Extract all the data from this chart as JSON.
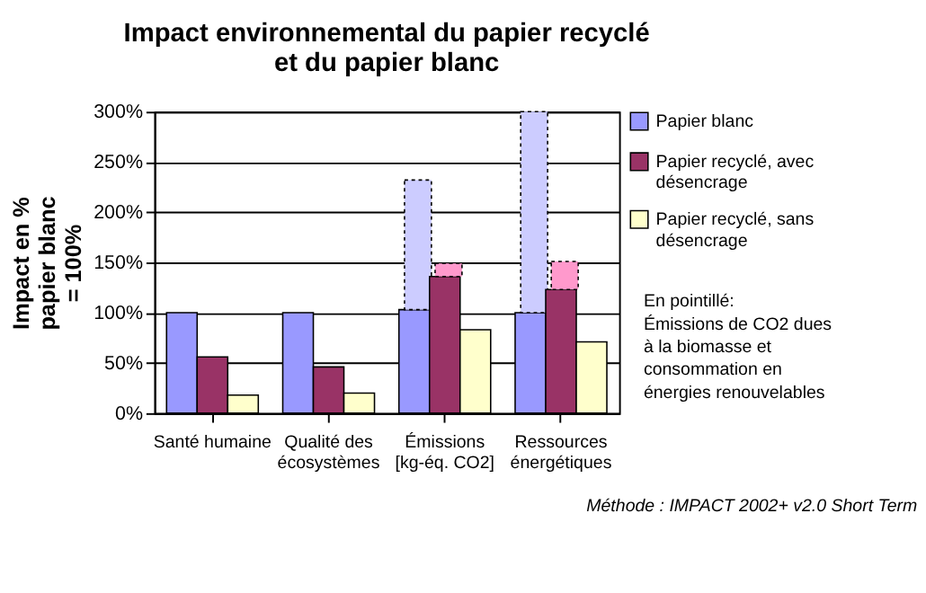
{
  "chart_data": {
    "type": "bar",
    "title": "Impact environnemental du papier recyclé et du papier blanc",
    "ylabel": "Impact en % papier blanc = 100%",
    "categories": [
      "Santé humaine",
      "Qualité des écosystèmes",
      "Émissions [kg-éq. CO2]",
      "Ressources énergétiques"
    ],
    "series": [
      {
        "name": "Papier blanc",
        "color": "#9999ff",
        "values": [
          100,
          100,
          103,
          100
        ]
      },
      {
        "color": "#ccccff",
        "values": [
          null,
          null,
          129,
          200
        ],
        "base": [
          null,
          null,
          103,
          100
        ],
        "line_style": "dotted"
      },
      {
        "name": "Papier recyclé, avec désencrage",
        "color": "#993366",
        "values": [
          56,
          46,
          136,
          123
        ]
      },
      {
        "color": "#ff99cc",
        "values": [
          null,
          null,
          13,
          28
        ],
        "base": [
          null,
          null,
          136,
          123
        ],
        "line_style": "dotted"
      },
      {
        "name": "Papier recyclé, sans désencrage",
        "color": "#ffffcc",
        "values": [
          18,
          20,
          83,
          71
        ]
      }
    ],
    "ylim": [
      0,
      300
    ],
    "yticks": [
      {
        "value": 0,
        "label": "0%"
      },
      {
        "value": 50,
        "label": "50%"
      },
      {
        "value": 100,
        "label": "100%"
      },
      {
        "value": 150,
        "label": "150%"
      },
      {
        "value": 200,
        "label": "200%"
      },
      {
        "value": 250,
        "label": "250%"
      },
      {
        "value": 300,
        "label": "300%"
      }
    ],
    "grid": "y",
    "legend": "right",
    "annotations": [
      "En pointillé: Émissions de CO2 dues à la biomasse et consommation en énergies renouvelables",
      "Méthode : IMPACT 2002+ v2.0 Short Term"
    ]
  }
}
